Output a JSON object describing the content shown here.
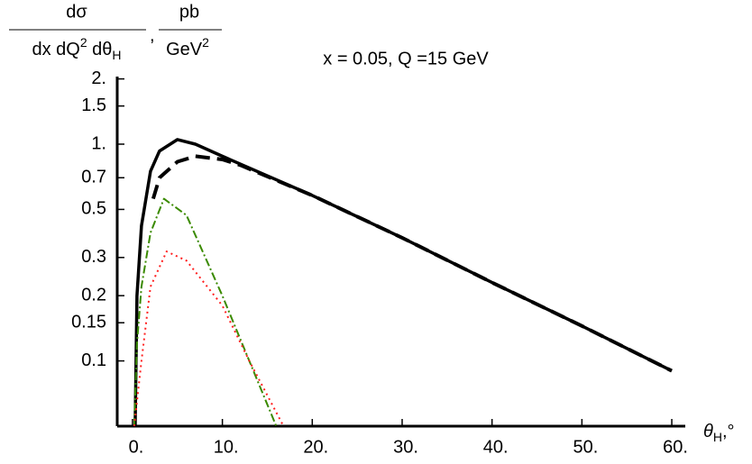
{
  "chart_data": {
    "type": "line",
    "title": "x = 0.05, Q =15 GeV",
    "ylabel": {
      "numerator": "dσ",
      "denominator": [
        "dx dQ",
        "2",
        " dθ",
        "H"
      ],
      "separator": ",",
      "unit_numerator": "pb",
      "unit_denominator": [
        "GeV",
        "2"
      ]
    },
    "xlabel": [
      "θ",
      "H",
      ",°"
    ],
    "log_y": true,
    "xlim": [
      -1.7,
      61.5
    ],
    "ylim": [
      0.05,
      2.05
    ],
    "xticks": [
      {
        "value": 0,
        "label": "0."
      },
      {
        "value": 10,
        "label": "10."
      },
      {
        "value": 20,
        "label": "20."
      },
      {
        "value": 30,
        "label": "30."
      },
      {
        "value": 40,
        "label": "40."
      },
      {
        "value": 50,
        "label": "50."
      },
      {
        "value": 60,
        "label": "60."
      }
    ],
    "yticks": [
      {
        "value": 2,
        "label": "2."
      },
      1.5,
      {
        "value": 1,
        "label": "1."
      },
      0.7,
      0.5,
      0.3,
      0.2,
      0.15,
      0.1
    ],
    "series": [
      {
        "color": "#000000",
        "dash": "solid",
        "x": [
          0.3,
          0.5,
          1,
          2,
          3,
          5,
          7,
          10,
          20,
          30,
          40,
          50,
          60
        ],
        "values": [
          0.05,
          0.2,
          0.42,
          0.75,
          0.93,
          1.05,
          1.0,
          0.88,
          0.58,
          0.37,
          0.23,
          0.145,
          0.09
        ]
      },
      {
        "color": "#000000",
        "dash": "dashed",
        "x": [
          2.3,
          3,
          5,
          7,
          10,
          12,
          20,
          30,
          40,
          50,
          60
        ],
        "values": [
          0.56,
          0.7,
          0.83,
          0.88,
          0.85,
          0.8,
          0.58,
          0.37,
          0.23,
          0.145,
          0.09
        ]
      },
      {
        "color": "#3a8a00",
        "dash": "dashdot",
        "x": [
          0.2,
          0.5,
          1,
          2,
          3.5,
          6,
          10,
          13,
          16
        ],
        "values": [
          0.05,
          0.12,
          0.22,
          0.39,
          0.56,
          0.47,
          0.2,
          0.1,
          0.05
        ]
      },
      {
        "color": "#ff2020",
        "dash": "dotted",
        "x": [
          0.2,
          1,
          2,
          3.8,
          6,
          10,
          13,
          16.8
        ],
        "values": [
          0.05,
          0.1,
          0.22,
          0.32,
          0.29,
          0.18,
          0.1,
          0.05
        ]
      }
    ]
  }
}
